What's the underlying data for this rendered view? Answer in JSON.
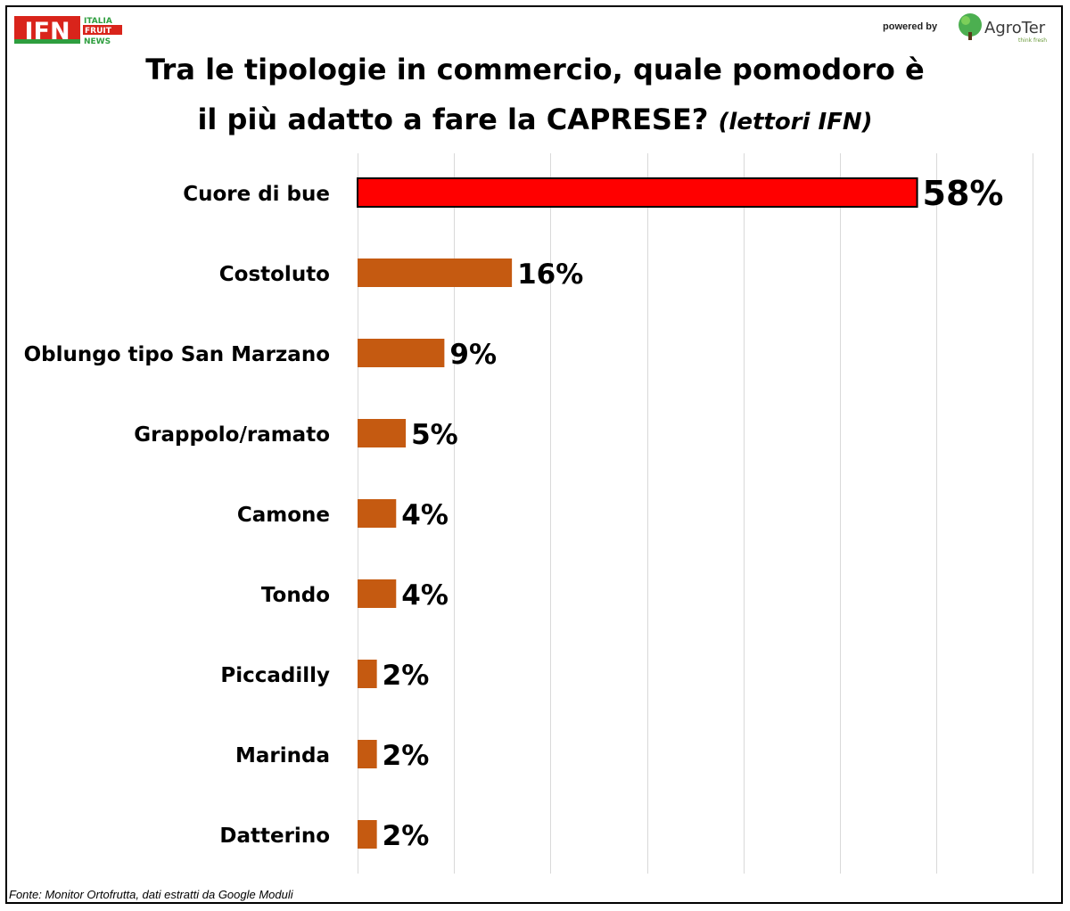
{
  "header": {
    "ifn_logo": {
      "word": "IFN",
      "lines": [
        "ITALIA",
        "FRUIT",
        "NEWS"
      ]
    },
    "powered_by": "powered by",
    "agroter_logo": {
      "brand": "AgroTer",
      "tagline": "think fresh"
    }
  },
  "title": {
    "line1": "Tra le tipologie in commercio, quale pomodoro è",
    "line2": "il più adatto a fare la CAPRESE?",
    "suffix": "(lettori IFN)"
  },
  "source": "Fonte: Monitor Ortofrutta, dati estratti da Google Moduli",
  "colors": {
    "highlight_bar": "#ff0000",
    "bar": "#c55a11",
    "gridline": "#d9d9d9",
    "ifn_red": "#d9241b",
    "ifn_green": "#2e9e3f",
    "agroter_green": "#4caf50"
  },
  "chart_data": {
    "type": "bar",
    "orientation": "horizontal",
    "categories": [
      "Cuore di bue",
      "Costoluto",
      "Oblungo tipo San Marzano",
      "Grappolo/ramato",
      "Camone",
      "Tondo",
      "Piccadilly",
      "Marinda",
      "Datterino"
    ],
    "values": [
      58,
      16,
      9,
      5,
      4,
      4,
      2,
      2,
      2
    ],
    "data_labels": [
      "58%",
      "16%",
      "9%",
      "5%",
      "4%",
      "4%",
      "2%",
      "2%",
      "2%"
    ],
    "highlight_index": 0,
    "xlim": [
      0,
      70
    ],
    "x_gridlines": [
      0,
      10,
      20,
      30,
      40,
      50,
      60,
      70
    ],
    "grid": true,
    "legend": "none",
    "xlabel": "",
    "ylabel": ""
  }
}
